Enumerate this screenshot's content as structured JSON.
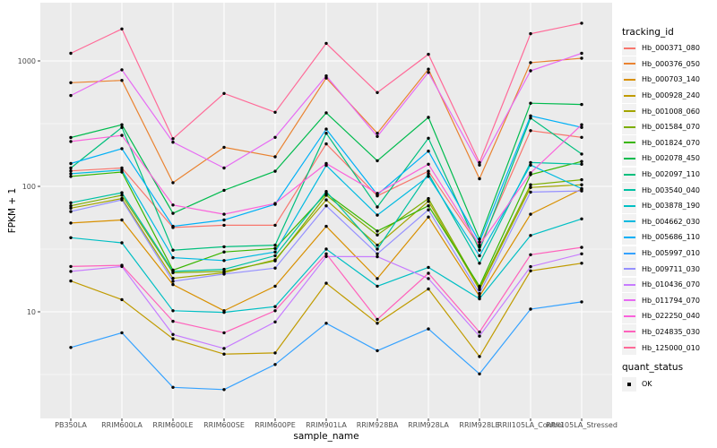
{
  "chart_data": {
    "type": "line",
    "title": "",
    "xlabel": "sample_name",
    "ylabel": "FPKM + 1",
    "y_scale": "log10",
    "y_ticks": [
      1000,
      100,
      10
    ],
    "y_minor_ticks": [
      316.2,
      31.62,
      3.162
    ],
    "ylim": [
      1.44,
      2900
    ],
    "panel_bg": "#EBEBEB",
    "grid_color": "#FFFFFF",
    "point_color": "#000000",
    "axis_text_color": "#4D4D4D",
    "legend": {
      "title": "tracking_id",
      "position": "right"
    },
    "quant_status": {
      "title": "quant_status",
      "items": [
        "OK"
      ]
    },
    "x_categories": [
      "PB350LA",
      "RRIM600LA",
      "RRIM600LE",
      "RRIM600SE",
      "RRIM600PE",
      "RRIM901LA",
      "RRIM928BA",
      "RRIM928LA",
      "RRIM928LE",
      "RRII105LA_Control",
      "RRII105LA_Stressed"
    ],
    "series": [
      {
        "name": "Hb_000371_080",
        "color": "#F8766D",
        "values": [
          133,
          140,
          47,
          49,
          49,
          218,
          84,
          132,
          33,
          278,
          246
        ]
      },
      {
        "name": "Hb_000376_050",
        "color": "#EA8331",
        "values": [
          670,
          700,
          107,
          205,
          172,
          730,
          265,
          860,
          115,
          970,
          1050
        ]
      },
      {
        "name": "Hb_000703_140",
        "color": "#D89000",
        "values": [
          51,
          54,
          16.5,
          10.2,
          16,
          48,
          18.4,
          57,
          13.3,
          60,
          95
        ]
      },
      {
        "name": "Hb_000928_240",
        "color": "#C09B00",
        "values": [
          17.6,
          12.5,
          6.1,
          4.6,
          4.7,
          16.9,
          8.1,
          15.2,
          4.4,
          21.2,
          24.4
        ]
      },
      {
        "name": "Hb_001008_060",
        "color": "#A3A500",
        "values": [
          67,
          80,
          18.5,
          20.5,
          26,
          78,
          34,
          76,
          15,
          98,
          103
        ]
      },
      {
        "name": "Hb_001584_070",
        "color": "#7CAE00",
        "values": [
          70,
          85,
          20.5,
          21,
          25.5,
          85,
          41,
          80,
          15.5,
          103,
          113
        ]
      },
      {
        "name": "Hb_001824_070",
        "color": "#39B600",
        "values": [
          120,
          130,
          21.5,
          30,
          32,
          88,
          44,
          70,
          16,
          124,
          158
        ]
      },
      {
        "name": "Hb_002078_450",
        "color": "#00BB4E",
        "values": [
          245,
          310,
          61,
          93,
          132,
          385,
          160,
          355,
          38,
          460,
          450
        ]
      },
      {
        "name": "Hb_002097_110",
        "color": "#00BF7D",
        "values": [
          140,
          295,
          31,
          33,
          34,
          265,
          68.5,
          242,
          31,
          350,
          181
        ]
      },
      {
        "name": "Hb_003540_040",
        "color": "#00C1A3",
        "values": [
          74,
          89,
          21,
          21.8,
          28,
          91,
          31.6,
          126,
          24.4,
          155,
          150
        ]
      },
      {
        "name": "Hb_003878_190",
        "color": "#00BFC4",
        "values": [
          39,
          35.5,
          10.2,
          9.9,
          11,
          31.6,
          16,
          22.6,
          12.7,
          40.6,
          55
        ]
      },
      {
        "name": "Hb_004662_030",
        "color": "#00BAE0",
        "values": [
          126,
          135,
          27,
          25.6,
          30,
          147,
          59,
          120,
          28,
          148,
          96
        ]
      },
      {
        "name": "Hb_005686_110",
        "color": "#00B0F6",
        "values": [
          152,
          200,
          48,
          54,
          72,
          286,
          86,
          191,
          36,
          365,
          295
        ]
      },
      {
        "name": "Hb_005997_010",
        "color": "#35A2FF",
        "values": [
          5.2,
          6.8,
          2.5,
          2.4,
          3.8,
          8.1,
          4.9,
          7.3,
          3.2,
          10.5,
          12
        ]
      },
      {
        "name": "Hb_009711_030",
        "color": "#9590FF",
        "values": [
          63,
          78,
          17.5,
          20,
          22.3,
          70,
          29,
          65,
          14,
          90,
          92
        ]
      },
      {
        "name": "Hb_010436_070",
        "color": "#C77CFF",
        "values": [
          21,
          23,
          6.6,
          5.1,
          8.3,
          27.6,
          27.5,
          18.4,
          6.4,
          22.9,
          29
        ]
      },
      {
        "name": "Hb_011794_070",
        "color": "#E76BF3",
        "values": [
          530,
          850,
          225,
          140,
          246,
          760,
          250,
          810,
          148,
          835,
          1150
        ]
      },
      {
        "name": "Hb_022250_040",
        "color": "#FA62DB",
        "values": [
          228,
          255,
          71,
          60,
          73,
          152,
          88,
          150,
          34,
          128,
          310
        ]
      },
      {
        "name": "Hb_024835_030",
        "color": "#FF62BC",
        "values": [
          23,
          23.5,
          8.4,
          6.8,
          10.2,
          29,
          8.7,
          20.3,
          6.9,
          28.5,
          32.6
        ]
      },
      {
        "name": "Hb_125000_010",
        "color": "#FF6A98",
        "values": [
          1150,
          1800,
          240,
          550,
          390,
          1380,
          560,
          1130,
          155,
          1650,
          2000
        ]
      }
    ]
  }
}
